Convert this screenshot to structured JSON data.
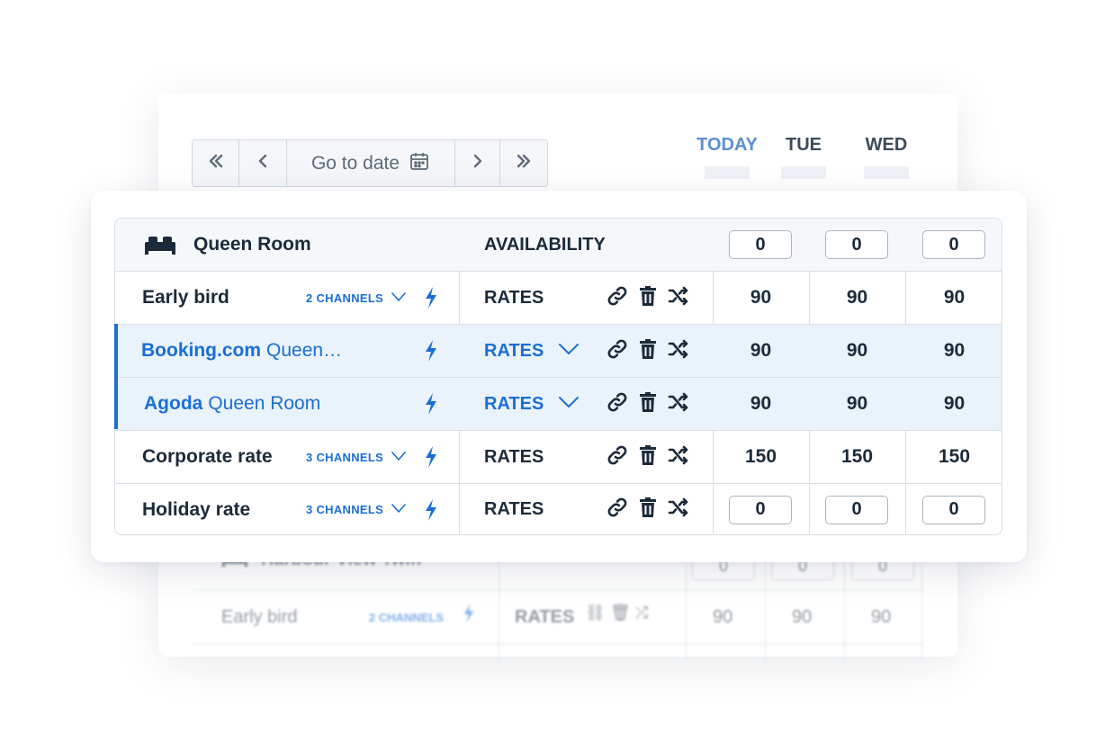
{
  "navigation": {
    "first_icon": "double-chevron-left-icon",
    "prev_icon": "chevron-left-icon",
    "go_to_date_label": "Go to date",
    "calendar_icon": "calendar-icon",
    "next_icon": "chevron-right-icon",
    "last_icon": "double-chevron-right-icon"
  },
  "days": [
    {
      "label": "TODAY",
      "highlight": true
    },
    {
      "label": "TUE",
      "highlight": false
    },
    {
      "label": "WED",
      "highlight": false
    }
  ],
  "room": {
    "icon": "bed-icon",
    "name": "Queen Room",
    "availability_label": "AVAILABILITY",
    "availability": [
      "0",
      "0",
      "0"
    ]
  },
  "rows": [
    {
      "name": "Early bird",
      "channels": "2 CHANNELS",
      "label": "RATES",
      "values": [
        "90",
        "90",
        "90"
      ]
    },
    {
      "channel": "Booking.com",
      "subname": "Queen…",
      "label": "RATES",
      "values": [
        "90",
        "90",
        "90"
      ]
    },
    {
      "channel": "Agoda",
      "subname": "Queen Room",
      "label": "RATES",
      "values": [
        "90",
        "90",
        "90"
      ]
    },
    {
      "name": "Corporate rate",
      "channels": "3 CHANNELS",
      "label": "RATES",
      "values": [
        "150",
        "150",
        "150"
      ]
    },
    {
      "name": "Holiday rate",
      "channels": "3 CHANNELS",
      "label": "RATES",
      "values": [
        "0",
        "0",
        "0"
      ]
    }
  ],
  "background_table": {
    "room_name": "Harbour View Twin",
    "availability": [
      "0",
      "0",
      "0"
    ],
    "row": {
      "name": "Early bird",
      "channels": "2 CHANNELS",
      "label": "RATES",
      "values": [
        "90",
        "90",
        "90"
      ]
    }
  },
  "colors": {
    "accent": "#1a6fd4",
    "text": "#1c2a3a",
    "highlight_row": "#eaf2fb",
    "today": "#5a8fd6"
  }
}
